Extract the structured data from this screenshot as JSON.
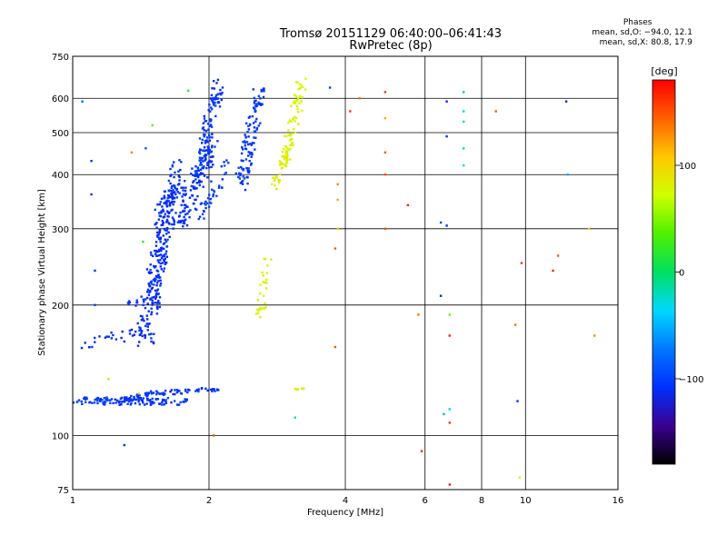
{
  "header": {
    "title_line1": "Tromsø 20151129 06:40:00–06:41:43",
    "title_line2": "RwPretec (8p)",
    "stats_title": "Phases",
    "stats_line1": "mean, sd,O: −94.0, 12.1",
    "stats_line2": "mean, sd,X:  80.8, 17.9"
  },
  "colorbar": {
    "label": "[deg]",
    "ticks": [
      "100",
      "0",
      "−100"
    ],
    "colors": [
      "#000000",
      "#3a0090",
      "#0030ff",
      "#0078ff",
      "#00d8ff",
      "#00e060",
      "#50f000",
      "#d0ff00",
      "#ffc800",
      "#ff6000",
      "#ff0000"
    ],
    "range": [
      -180,
      180
    ]
  },
  "chart_data": {
    "type": "scatter",
    "title": "Tromsø 20151129 06:40:00–06:41:43",
    "subtitle": "RwPretec (8p)",
    "xlabel": "Frequency [MHz]",
    "ylabel": "Stationary phase Virtual Height [km]",
    "x_scale": "log",
    "y_scale": "log",
    "xlim": [
      1,
      16
    ],
    "ylim": [
      75,
      750
    ],
    "x_ticks": [
      1,
      2,
      4,
      6,
      8,
      10,
      16
    ],
    "x_tick_labels": [
      "1",
      "2",
      "4",
      "6",
      "8",
      "10",
      "16"
    ],
    "y_ticks": [
      75,
      100,
      200,
      300,
      400,
      500,
      600,
      750
    ],
    "y_tick_labels": [
      "75",
      "100",
      "200",
      "300",
      "400",
      "500",
      "600",
      "750"
    ],
    "grid": true,
    "color_variable": "phase [deg]",
    "series": [
      {
        "traces": [
          {
            "f1": 1.0,
            "f2": 1.8,
            "h1": 120,
            "h2": 120,
            "n": 110,
            "phase": -105,
            "jit": 0.025
          },
          {
            "f1": 1.05,
            "f2": 1.25,
            "h1": 160,
            "h2": 170,
            "n": 14,
            "phase": -110,
            "jit": 0.03
          },
          {
            "f1": 1.25,
            "f2": 1.5,
            "h1": 168,
            "h2": 175,
            "n": 18,
            "phase": -112,
            "jit": 0.04
          },
          {
            "f1": 1.3,
            "f2": 1.45,
            "h1": 200,
            "h2": 205,
            "n": 12,
            "phase": -110,
            "jit": 0.02
          },
          {
            "f1": 1.45,
            "f2": 1.6,
            "h1": 170,
            "h2": 320,
            "n": 140,
            "phase": -110,
            "jit": 0.09
          },
          {
            "f1": 1.5,
            "f2": 1.7,
            "h1": 200,
            "h2": 420,
            "n": 130,
            "phase": -108,
            "jit": 0.07
          },
          {
            "f1": 1.55,
            "f2": 1.75,
            "h1": 330,
            "h2": 380,
            "n": 50,
            "phase": -108,
            "jit": 0.05
          },
          {
            "f1": 1.7,
            "f2": 2.05,
            "h1": 300,
            "h2": 480,
            "n": 120,
            "phase": -108,
            "jit": 0.06
          },
          {
            "f1": 1.85,
            "f2": 2.1,
            "h1": 380,
            "h2": 640,
            "n": 110,
            "phase": -105,
            "jit": 0.06
          },
          {
            "f1": 1.9,
            "f2": 2.2,
            "h1": 320,
            "h2": 420,
            "n": 40,
            "phase": -100,
            "jit": 0.05
          },
          {
            "f1": 2.35,
            "f2": 2.6,
            "h1": 380,
            "h2": 640,
            "n": 110,
            "phase": -105,
            "jit": 0.06
          },
          {
            "f1": 1.25,
            "f2": 1.5,
            "h1": 120,
            "h2": 125,
            "n": 40,
            "phase": -108,
            "jit": 0.015
          },
          {
            "f1": 1.5,
            "f2": 2.1,
            "h1": 125,
            "h2": 128,
            "n": 50,
            "phase": -108,
            "jit": 0.015
          },
          {
            "f1": 2.6,
            "f2": 2.7,
            "h1": 190,
            "h2": 260,
            "n": 30,
            "phase": 80,
            "jit": 0.05
          },
          {
            "f1": 2.8,
            "f2": 3.0,
            "h1": 380,
            "h2": 460,
            "n": 40,
            "phase": 85,
            "jit": 0.04
          },
          {
            "f1": 2.95,
            "f2": 3.2,
            "h1": 430,
            "h2": 650,
            "n": 70,
            "phase": 78,
            "jit": 0.05
          },
          {
            "f1": 3.1,
            "f2": 3.25,
            "h1": 128,
            "h2": 128,
            "n": 8,
            "phase": 85,
            "jit": 0.005
          }
        ],
        "points": [
          [
            1.05,
            590,
            -80
          ],
          [
            1.1,
            430,
            -110
          ],
          [
            1.1,
            360,
            -105
          ],
          [
            1.12,
            240,
            -110
          ],
          [
            1.12,
            200,
            -100
          ],
          [
            1.2,
            135,
            60
          ],
          [
            1.3,
            95,
            -110
          ],
          [
            1.35,
            450,
            130
          ],
          [
            1.45,
            460,
            -90
          ],
          [
            1.43,
            280,
            20
          ],
          [
            1.4,
            125,
            90
          ],
          [
            1.8,
            625,
            20
          ],
          [
            1.5,
            520,
            40
          ],
          [
            2.05,
            100,
            150
          ],
          [
            3.1,
            110,
            -20
          ],
          [
            3.7,
            635,
            -100
          ],
          [
            3.8,
            270,
            150
          ],
          [
            3.8,
            160,
            150
          ],
          [
            3.85,
            380,
            130
          ],
          [
            3.85,
            350,
            120
          ],
          [
            3.85,
            300,
            110
          ],
          [
            4.1,
            560,
            160
          ],
          [
            4.3,
            600,
            140
          ],
          [
            4.9,
            450,
            150
          ],
          [
            4.9,
            400,
            150
          ],
          [
            4.9,
            300,
            150
          ],
          [
            4.9,
            540,
            120
          ],
          [
            4.9,
            620,
            160
          ],
          [
            5.5,
            340,
            170
          ],
          [
            5.8,
            190,
            140
          ],
          [
            5.9,
            92,
            165
          ],
          [
            6.5,
            310,
            -100
          ],
          [
            6.5,
            210,
            -110
          ],
          [
            6.7,
            305,
            -115
          ],
          [
            6.7,
            490,
            -110
          ],
          [
            6.8,
            190,
            40
          ],
          [
            6.8,
            170,
            170
          ],
          [
            6.6,
            112,
            -50
          ],
          [
            6.8,
            115,
            -40
          ],
          [
            6.8,
            107,
            160
          ],
          [
            6.8,
            77,
            170
          ],
          [
            6.7,
            590,
            -115
          ],
          [
            7.3,
            620,
            0
          ],
          [
            7.3,
            560,
            -30
          ],
          [
            7.3,
            530,
            -20
          ],
          [
            7.3,
            460,
            -20
          ],
          [
            7.3,
            420,
            -30
          ],
          [
            8.6,
            560,
            150
          ],
          [
            9.5,
            180,
            140
          ],
          [
            9.6,
            120,
            -110
          ],
          [
            9.7,
            80,
            70
          ],
          [
            9.8,
            250,
            160
          ],
          [
            11.5,
            240,
            170
          ],
          [
            11.8,
            260,
            150
          ],
          [
            12.3,
            590,
            -115
          ],
          [
            12.4,
            400,
            -50
          ],
          [
            13.8,
            300,
            100
          ],
          [
            14.2,
            170,
            130
          ]
        ]
      }
    ]
  }
}
